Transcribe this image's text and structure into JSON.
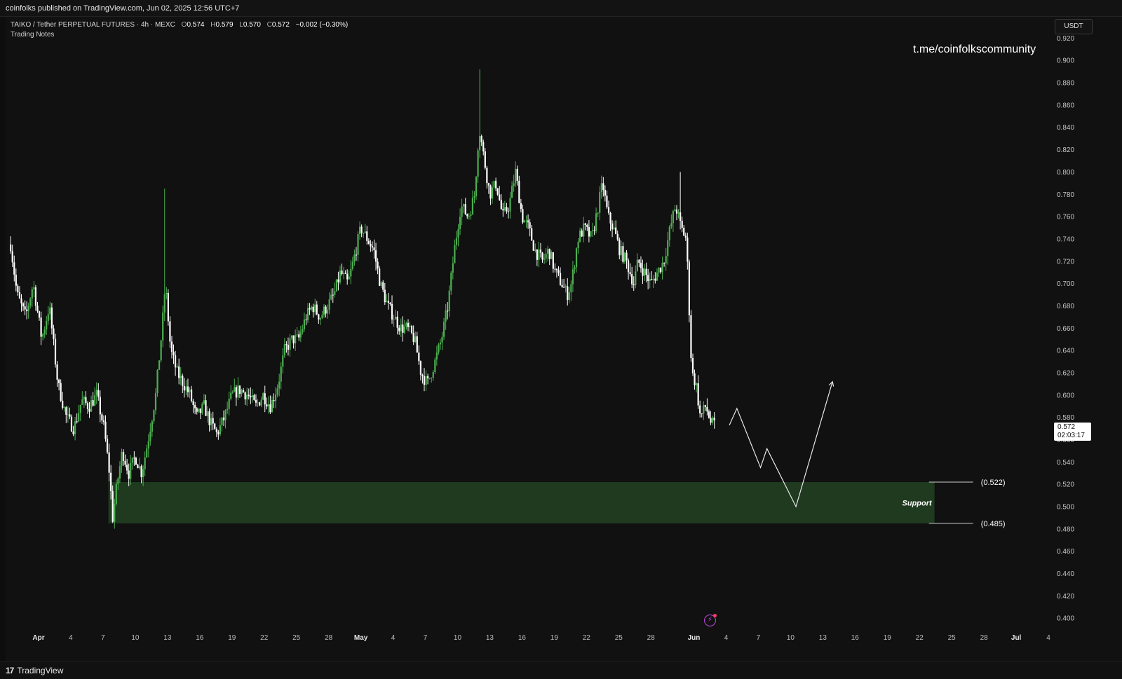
{
  "topbar": {
    "publisher": "coinfolks published on TradingView.com, Jun 02, 2025 12:56 UTC+7"
  },
  "legend": {
    "symbol": "TAIKO / Tether PERPETUAL FUTURES · 4h · MEXC",
    "o_label": "O",
    "o": "0.574",
    "h_label": "H",
    "h": "0.579",
    "l_label": "L",
    "l": "0.570",
    "c_label": "C",
    "c": "0.572",
    "change": "−0.002 (−0.30%)",
    "note": "Trading Notes"
  },
  "watermark": "t.me/coinfolkscommunity",
  "currency": "USDT",
  "last_price": {
    "price": "0.572",
    "countdown": "02:03:17"
  },
  "footer": {
    "brand": "TradingView"
  },
  "colors": {
    "up": "#4caf50",
    "down": "#ffffff",
    "support_zone": "#1f3a1f",
    "background": "#111111"
  },
  "chart_data": {
    "type": "candlestick",
    "timeframe": "4h",
    "y_ticks": [
      "0.400",
      "0.420",
      "0.440",
      "0.460",
      "0.480",
      "0.500",
      "0.520",
      "0.540",
      "0.560",
      "0.580",
      "0.600",
      "0.620",
      "0.640",
      "0.660",
      "0.680",
      "0.700",
      "0.720",
      "0.740",
      "0.760",
      "0.780",
      "0.800",
      "0.820",
      "0.840",
      "0.860",
      "0.880",
      "0.900",
      "0.920"
    ],
    "ylim": [
      0.397,
      0.923
    ],
    "x_ticks": [
      "Apr",
      "4",
      "7",
      "10",
      "13",
      "16",
      "19",
      "22",
      "25",
      "28",
      "May",
      "4",
      "7",
      "10",
      "13",
      "16",
      "19",
      "22",
      "25",
      "28",
      "Jun",
      "4",
      "7",
      "10",
      "13",
      "16",
      "19",
      "22",
      "25",
      "28",
      "Jul",
      "4"
    ],
    "x_tick_days": [
      0,
      3,
      6,
      9,
      12,
      15,
      18,
      21,
      24,
      27,
      30,
      33,
      36,
      39,
      42,
      45,
      48,
      51,
      54,
      57,
      61,
      64,
      67,
      70,
      73,
      76,
      79,
      82,
      85,
      88,
      91,
      94
    ],
    "bold_ticks": [
      "Apr",
      "May",
      "Jun",
      "Jul"
    ],
    "price_path": [
      [
        -2.6,
        0.735
      ],
      [
        -2.0,
        0.69
      ],
      [
        -1.2,
        0.67
      ],
      [
        -0.5,
        0.7
      ],
      [
        0.3,
        0.65
      ],
      [
        1.0,
        0.68
      ],
      [
        1.8,
        0.61
      ],
      [
        2.6,
        0.58
      ],
      [
        3.3,
        0.57
      ],
      [
        4.0,
        0.595
      ],
      [
        4.7,
        0.59
      ],
      [
        5.4,
        0.6
      ],
      [
        6.1,
        0.57
      ],
      [
        6.6,
        0.53
      ],
      [
        6.9,
        0.49
      ],
      [
        7.3,
        0.52
      ],
      [
        7.8,
        0.55
      ],
      [
        8.4,
        0.53
      ],
      [
        9.0,
        0.545
      ],
      [
        9.6,
        0.53
      ],
      [
        10.2,
        0.56
      ],
      [
        10.9,
        0.6
      ],
      [
        11.5,
        0.66
      ],
      [
        11.8,
        0.7
      ],
      [
        12.3,
        0.64
      ],
      [
        12.9,
        0.62
      ],
      [
        13.5,
        0.61
      ],
      [
        14.1,
        0.6
      ],
      [
        14.7,
        0.58
      ],
      [
        15.4,
        0.59
      ],
      [
        16.0,
        0.575
      ],
      [
        16.6,
        0.565
      ],
      [
        17.3,
        0.58
      ],
      [
        18.0,
        0.6
      ],
      [
        18.7,
        0.605
      ],
      [
        19.5,
        0.6
      ],
      [
        20.2,
        0.59
      ],
      [
        20.9,
        0.6
      ],
      [
        21.6,
        0.59
      ],
      [
        22.3,
        0.61
      ],
      [
        22.9,
        0.64
      ],
      [
        23.6,
        0.65
      ],
      [
        24.2,
        0.65
      ],
      [
        24.9,
        0.67
      ],
      [
        25.5,
        0.68
      ],
      [
        26.2,
        0.67
      ],
      [
        26.9,
        0.68
      ],
      [
        27.5,
        0.69
      ],
      [
        28.1,
        0.71
      ],
      [
        28.8,
        0.7
      ],
      [
        29.3,
        0.72
      ],
      [
        30.0,
        0.75
      ],
      [
        30.6,
        0.74
      ],
      [
        31.2,
        0.73
      ],
      [
        31.8,
        0.7
      ],
      [
        32.5,
        0.68
      ],
      [
        33.1,
        0.67
      ],
      [
        33.7,
        0.66
      ],
      [
        34.3,
        0.66
      ],
      [
        35.0,
        0.65
      ],
      [
        35.6,
        0.62
      ],
      [
        36.2,
        0.61
      ],
      [
        36.9,
        0.63
      ],
      [
        37.5,
        0.65
      ],
      [
        38.1,
        0.68
      ],
      [
        38.7,
        0.73
      ],
      [
        39.3,
        0.77
      ],
      [
        40.0,
        0.76
      ],
      [
        40.6,
        0.78
      ],
      [
        41.0,
        0.84
      ],
      [
        41.5,
        0.81
      ],
      [
        42.0,
        0.78
      ],
      [
        42.6,
        0.79
      ],
      [
        43.2,
        0.76
      ],
      [
        43.8,
        0.77
      ],
      [
        44.4,
        0.8
      ],
      [
        45.0,
        0.76
      ],
      [
        45.6,
        0.75
      ],
      [
        46.2,
        0.73
      ],
      [
        46.9,
        0.72
      ],
      [
        47.5,
        0.73
      ],
      [
        48.1,
        0.71
      ],
      [
        48.7,
        0.7
      ],
      [
        49.2,
        0.69
      ],
      [
        49.6,
        0.7
      ],
      [
        50.2,
        0.74
      ],
      [
        50.8,
        0.75
      ],
      [
        51.5,
        0.74
      ],
      [
        52.1,
        0.77
      ],
      [
        52.5,
        0.79
      ],
      [
        53.0,
        0.76
      ],
      [
        53.5,
        0.75
      ],
      [
        54.1,
        0.73
      ],
      [
        54.7,
        0.72
      ],
      [
        55.4,
        0.7
      ],
      [
        55.8,
        0.72
      ],
      [
        56.4,
        0.71
      ],
      [
        57.0,
        0.7
      ],
      [
        57.6,
        0.71
      ],
      [
        58.2,
        0.72
      ],
      [
        58.8,
        0.75
      ],
      [
        59.3,
        0.77
      ],
      [
        59.8,
        0.75
      ],
      [
        60.3,
        0.74
      ],
      [
        60.8,
        0.62
      ],
      [
        61.2,
        0.61
      ],
      [
        61.6,
        0.58
      ],
      [
        62.1,
        0.59
      ],
      [
        62.6,
        0.575
      ],
      [
        63.0,
        0.572
      ]
    ]
  },
  "annotations": {
    "support_label": "Support",
    "support_top_label": "(0.522)",
    "support_bottom_label": "(0.485)",
    "support_top": 0.522,
    "support_bottom": 0.485,
    "support_start_day": 6.5,
    "support_end_day": 83.4,
    "projection_path": [
      [
        64.3,
        0.573
      ],
      [
        65.0,
        0.588
      ],
      [
        67.2,
        0.535
      ],
      [
        67.8,
        0.552
      ],
      [
        70.5,
        0.5
      ],
      [
        73.9,
        0.612
      ]
    ]
  }
}
